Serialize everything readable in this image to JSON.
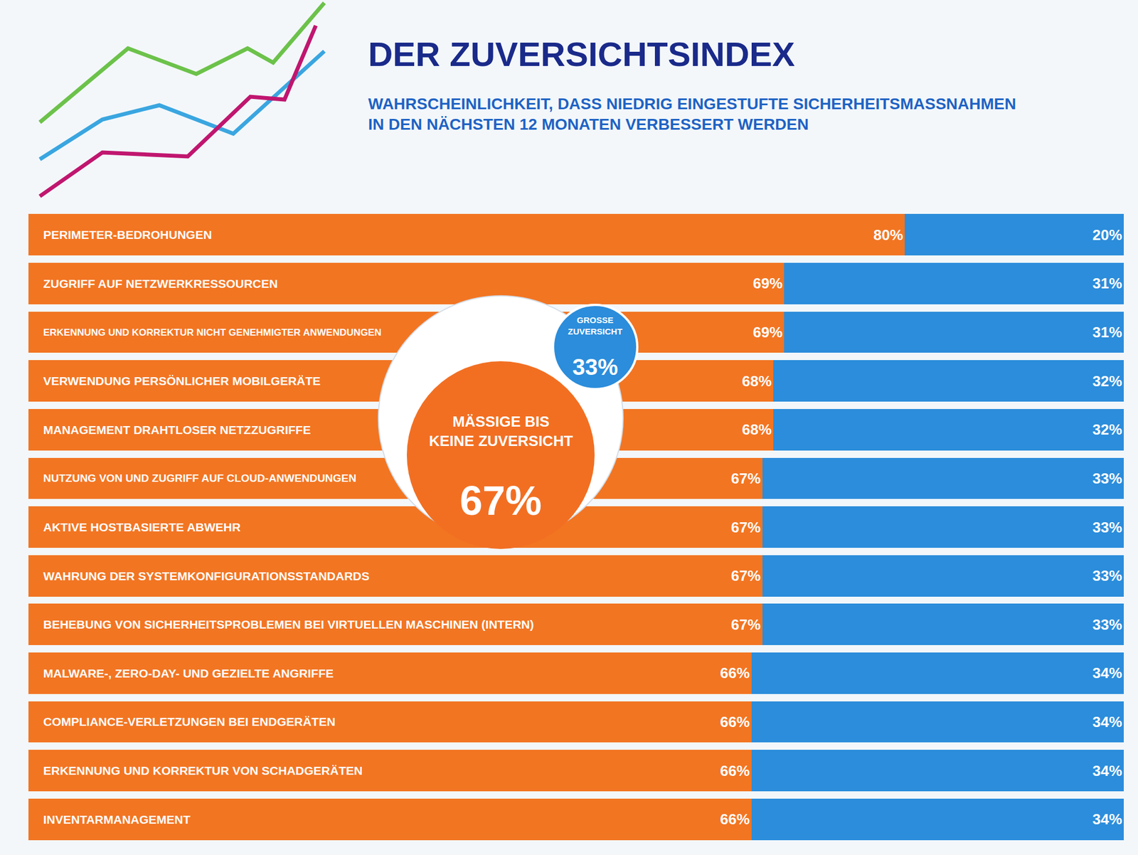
{
  "chart_data": {
    "type": "bar",
    "orientation": "horizontal",
    "stacked": true,
    "title": "DER ZUVERSICHTSINDEX",
    "subtitle": "WAHRSCHEINLICHKEIT, DASS NIEDRIG EINGESTUFTE SICHERHEITSMASSNAHMEN IN DEN NÄCHSTEN 12 MONATEN VERBESSERT WERDEN",
    "categories": [
      "PERIMETER-BEDROHUNGEN",
      "ZUGRIFF AUF NETZWERKRESSOURCEN",
      "ERKENNUNG UND KORREKTUR NICHT GENEHMIGTER ANWENDUNGEN",
      "VERWENDUNG PERSÖNLICHER MOBILGERÄTE",
      "MANAGEMENT DRAHTLOSER NETZZUGRIFFE",
      "NUTZUNG VON UND ZUGRIFF AUF CLOUD-ANWENDUNGEN",
      "AKTIVE HOSTBASIERTE ABWEHR",
      "WAHRUNG DER SYSTEMKONFIGURATIONSSTANDARDS",
      "BEHEBUNG VON SICHERHEITSPROBLEMEN BEI VIRTUELLEN MASCHINEN (INTERN)",
      "MALWARE-, ZERO-DAY- UND GEZIELTE ANGRIFFE",
      "COMPLIANCE-VERLETZUNGEN BEI ENDGERÄTEN",
      "ERKENNUNG UND KORREKTUR VON SCHADGERÄTEN",
      "INVENTARMANAGEMENT"
    ],
    "series": [
      {
        "name": "MÄSSIGE BIS KEINE ZUVERSICHT",
        "color": "#f27522",
        "values": [
          80,
          69,
          69,
          68,
          68,
          67,
          67,
          67,
          67,
          66,
          66,
          66,
          66
        ],
        "value_labels": [
          "80%",
          "69%",
          "69%",
          "68%",
          "68%",
          "67%",
          "67%",
          "67%",
          "67%",
          "66%",
          "66%",
          "66%",
          "66%"
        ],
        "summary_value": 67,
        "summary_label": "67%"
      },
      {
        "name": "GROSSE ZUVERSICHT",
        "color": "#2b8ddb",
        "values": [
          20,
          31,
          31,
          32,
          32,
          33,
          33,
          33,
          33,
          34,
          34,
          34,
          34
        ],
        "value_labels": [
          "20%",
          "31%",
          "31%",
          "32%",
          "32%",
          "33%",
          "33%",
          "33%",
          "33%",
          "34%",
          "34%",
          "34%",
          "34%"
        ],
        "summary_value": 33,
        "summary_label": "33%"
      }
    ],
    "xlim": [
      0,
      100
    ],
    "data_labels": true,
    "tick_labels": false,
    "grid": false
  }
}
